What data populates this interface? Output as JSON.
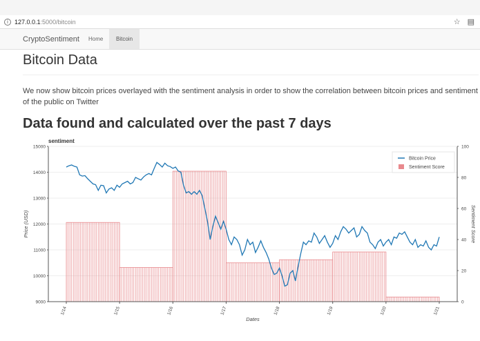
{
  "browser": {
    "url_host": "127.0.0.1",
    "url_path": ":5000/bitcoin",
    "info_icon": "info-icon",
    "star_icon": "star-icon",
    "extension_icon": "store-icon"
  },
  "navbar": {
    "brand": "CryptoSentiment",
    "links": [
      {
        "label": "Home",
        "active": false
      },
      {
        "label": "Bitcoin",
        "active": true
      }
    ]
  },
  "page": {
    "title": "Bitcoin Data",
    "lead": "We now show bitcoin prices overlayed with the sentiment analysis in order to show the correlation between bitcoin prices and sentiment of the public on Twitter",
    "subtitle": "Data found and calculated over the past 7 days"
  },
  "chart_data": {
    "type": "line",
    "title": "sentiment",
    "xlabel": "Dates",
    "ylabel": "Price (USD)",
    "y2label": "Sentiment Score",
    "x_ticks": [
      "1/14",
      "1/15",
      "1/16",
      "1/17",
      "1/18",
      "1/19",
      "1/20",
      "1/21"
    ],
    "ylim": [
      9000,
      15000
    ],
    "y_ticks": [
      9000,
      10000,
      11000,
      12000,
      13000,
      14000,
      15000
    ],
    "y2lim": [
      0,
      100
    ],
    "y2_ticks": [
      0,
      20,
      40,
      60,
      80,
      100
    ],
    "legend_position": "top-right",
    "colors": {
      "price": "#1f77b4",
      "sentiment": "#e8898d"
    },
    "series": [
      {
        "name": "Bitcoin Price",
        "kind": "line",
        "x": [
          0,
          0.05,
          0.1,
          0.15,
          0.2,
          0.25,
          0.3,
          0.35,
          0.4,
          0.45,
          0.5,
          0.55,
          0.6,
          0.65,
          0.7,
          0.75,
          0.8,
          0.85,
          0.9,
          0.95,
          1.0,
          1.05,
          1.1,
          1.15,
          1.2,
          1.25,
          1.3,
          1.35,
          1.4,
          1.45,
          1.5,
          1.55,
          1.6,
          1.65,
          1.7,
          1.75,
          1.8,
          1.85,
          1.9,
          1.95,
          2.0,
          2.05,
          2.1,
          2.15,
          2.2,
          2.25,
          2.3,
          2.35,
          2.4,
          2.45,
          2.5,
          2.55,
          2.6,
          2.65,
          2.7,
          2.75,
          2.8,
          2.85,
          2.9,
          2.95,
          3.0,
          3.05,
          3.1,
          3.15,
          3.2,
          3.25,
          3.3,
          3.35,
          3.4,
          3.45,
          3.5,
          3.55,
          3.6,
          3.65,
          3.7,
          3.75,
          3.8,
          3.85,
          3.9,
          3.95,
          4.0,
          4.05,
          4.1,
          4.15,
          4.2,
          4.25,
          4.3,
          4.35,
          4.4,
          4.45,
          4.5,
          4.55,
          4.6,
          4.65,
          4.7,
          4.75,
          4.8,
          4.85,
          4.9,
          4.95,
          5.0,
          5.05,
          5.1,
          5.15,
          5.2,
          5.25,
          5.3,
          5.35,
          5.4,
          5.45,
          5.5,
          5.55,
          5.6,
          5.65,
          5.7,
          5.75,
          5.8,
          5.85,
          5.9,
          5.95,
          6.0,
          6.05,
          6.1,
          6.15,
          6.2,
          6.25,
          6.3,
          6.35,
          6.4,
          6.45,
          6.5,
          6.55,
          6.6,
          6.65,
          6.7,
          6.75,
          6.8,
          6.85,
          6.9,
          6.95,
          7.0
        ],
        "values": [
          14200,
          14250,
          14280,
          14230,
          14200,
          13900,
          13850,
          13870,
          13750,
          13650,
          13550,
          13520,
          13300,
          13500,
          13480,
          13200,
          13350,
          13400,
          13300,
          13500,
          13420,
          13550,
          13600,
          13650,
          13550,
          13600,
          13800,
          13750,
          13700,
          13820,
          13900,
          13950,
          13900,
          14150,
          14380,
          14300,
          14200,
          14350,
          14250,
          14220,
          14150,
          14200,
          14050,
          14000,
          13500,
          13200,
          13250,
          13150,
          13250,
          13150,
          13300,
          13100,
          12600,
          12100,
          11400,
          11900,
          12300,
          12050,
          11800,
          12100,
          11800,
          11400,
          11200,
          11500,
          11400,
          11200,
          10800,
          11000,
          11400,
          11200,
          11300,
          10900,
          11100,
          11350,
          11100,
          10900,
          10650,
          10300,
          10050,
          10100,
          10300,
          10000,
          9600,
          9650,
          10100,
          10200,
          9800,
          10350,
          10850,
          11300,
          11200,
          11350,
          11300,
          11650,
          11500,
          11250,
          11400,
          11550,
          11300,
          11100,
          11250,
          11550,
          11400,
          11700,
          11900,
          11800,
          11650,
          11750,
          11850,
          11500,
          11600,
          11900,
          11750,
          11650,
          11300,
          11200,
          11050,
          11300,
          11400,
          11150,
          11300,
          11400,
          11200,
          11500,
          11450,
          11650,
          11600,
          11700,
          11500,
          11300,
          11200,
          11400,
          11100,
          11200,
          11150,
          11350,
          11100,
          11000,
          11200,
          11150,
          11500
        ]
      },
      {
        "name": "Sentiment Score",
        "kind": "bar",
        "bins": [
          {
            "start": 0,
            "end": 1,
            "value": 51
          },
          {
            "start": 1,
            "end": 2,
            "value": 22
          },
          {
            "start": 2,
            "end": 3,
            "value": 84
          },
          {
            "start": 3,
            "end": 4,
            "value": 25
          },
          {
            "start": 4,
            "end": 5,
            "value": 27
          },
          {
            "start": 5,
            "end": 6,
            "value": 32
          },
          {
            "start": 6,
            "end": 7,
            "value": 3
          }
        ]
      }
    ]
  }
}
